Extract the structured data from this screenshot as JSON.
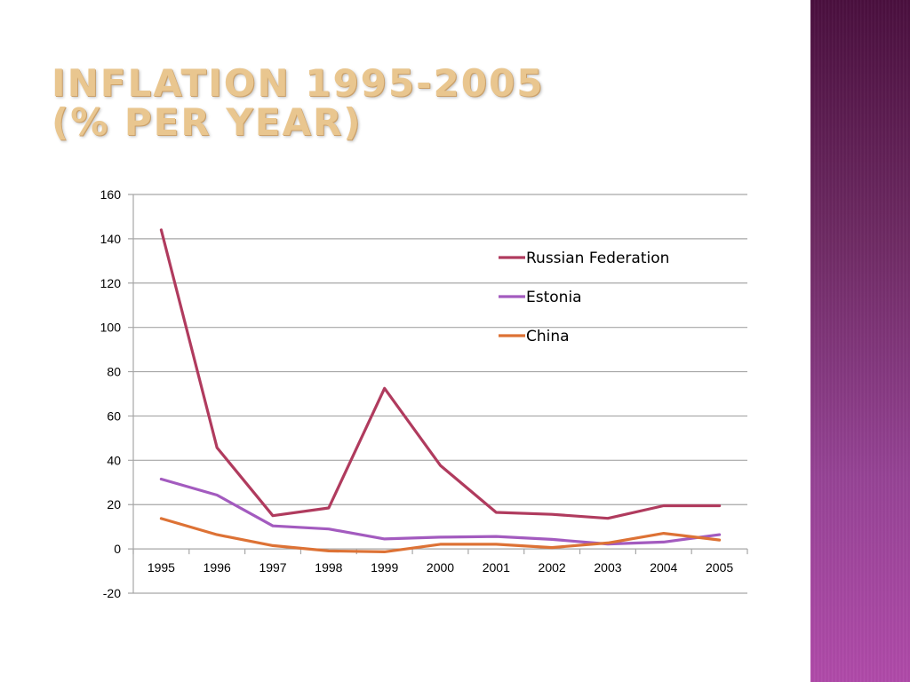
{
  "slide": {
    "title_line1": "Inflation 1995-2005",
    "title_line2": "(% per year)"
  },
  "colors": {
    "title": "#e9c68f",
    "russia": "#b03b5e",
    "estonia": "#a35bbf",
    "china": "#dd7235",
    "grid": "#a6a6a6",
    "side_band_top": "#4a0f3e",
    "side_band_bottom": "#b04aa9"
  },
  "chart_data": {
    "type": "line",
    "title": "",
    "xlabel": "",
    "ylabel": "",
    "x": [
      "1995",
      "1996",
      "1997",
      "1998",
      "1999",
      "2000",
      "2001",
      "2002",
      "2003",
      "2004",
      "2005"
    ],
    "ylim": [
      -20,
      160
    ],
    "yticks": [
      -20,
      0,
      20,
      40,
      60,
      80,
      100,
      120,
      140,
      160
    ],
    "grid": true,
    "legend_position": "top-right",
    "series": [
      {
        "name": "Russian Federation",
        "color": "#b03b5e",
        "values": [
          144,
          45.7,
          15,
          18.5,
          72.5,
          37.7,
          16.5,
          15.6,
          13.8,
          19.5,
          19.5
        ]
      },
      {
        "name": "Estonia",
        "color": "#a35bbf",
        "values": [
          31.5,
          24.3,
          10.4,
          9,
          4.5,
          5.3,
          5.6,
          4.3,
          2.2,
          3.1,
          6.4
        ]
      },
      {
        "name": "China",
        "color": "#dd7235",
        "values": [
          13.7,
          6.4,
          1.5,
          -0.9,
          -1.3,
          2.1,
          2.1,
          0.6,
          2.7,
          7.0,
          4.0
        ]
      }
    ]
  }
}
